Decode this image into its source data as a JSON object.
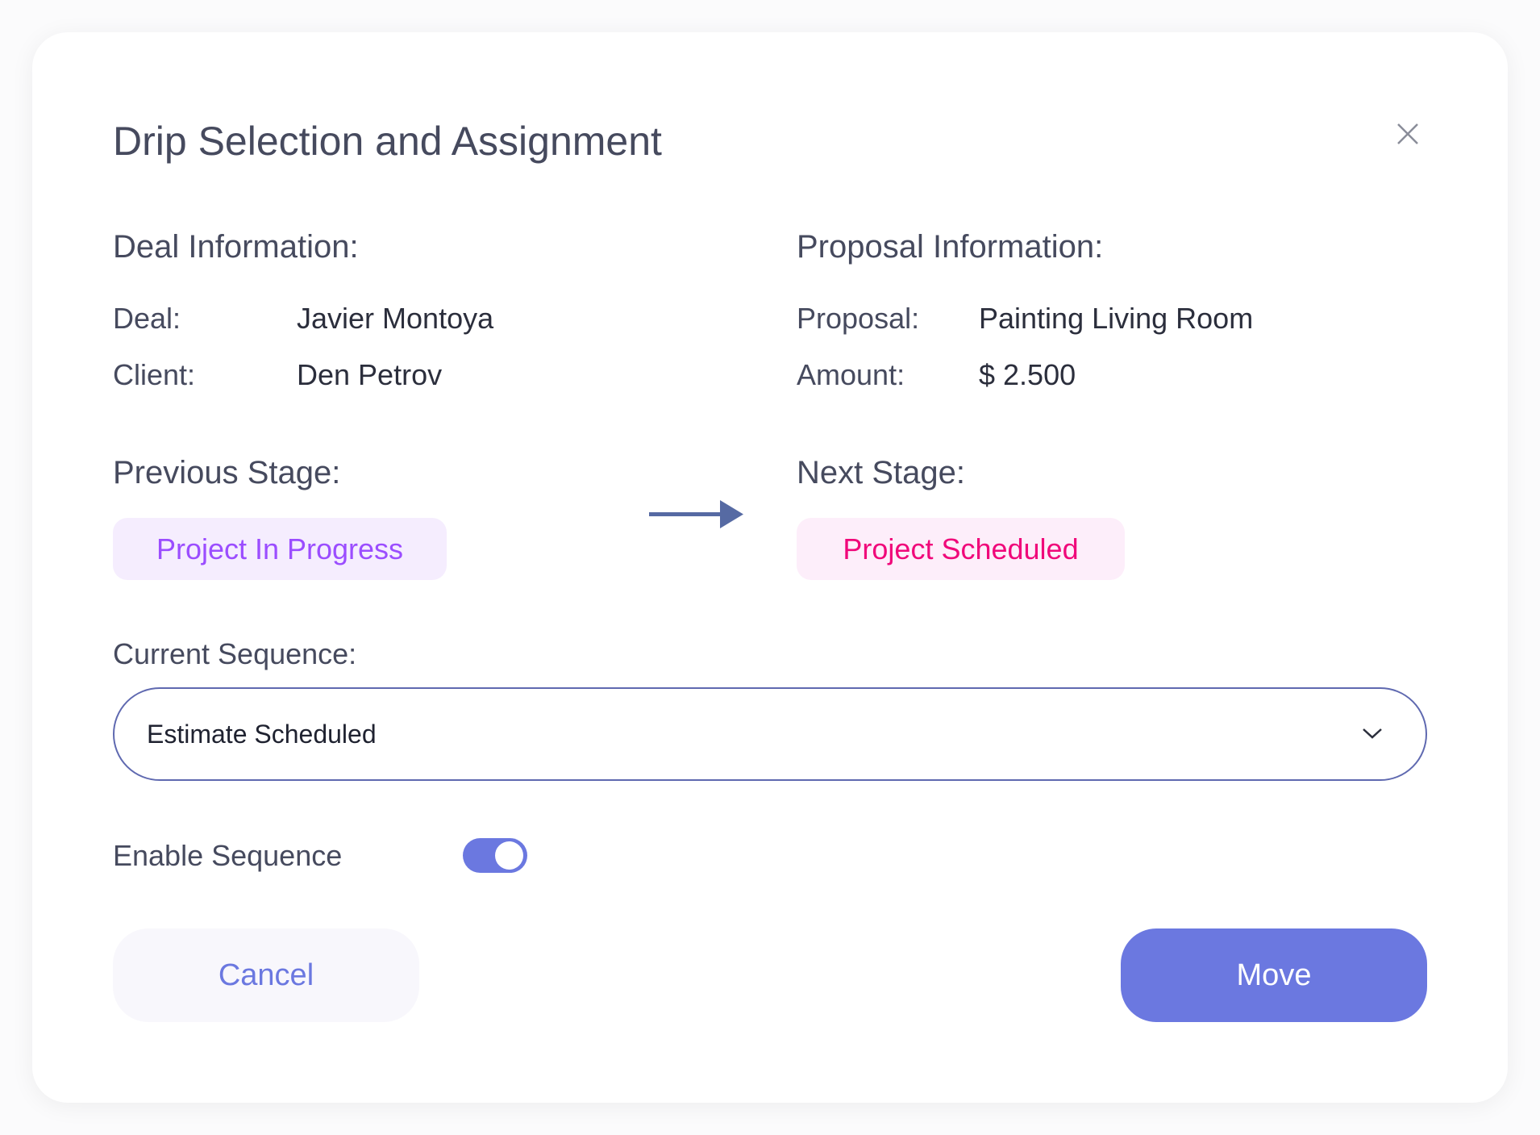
{
  "dialog": {
    "title": "Drip Selection and Assignment",
    "close_icon": "close-icon"
  },
  "deal": {
    "heading": "Deal Information:",
    "deal_label": "Deal:",
    "deal_value": "Javier Montoya",
    "client_label": "Client:",
    "client_value": "Den Petrov"
  },
  "proposal": {
    "heading": "Proposal Information:",
    "proposal_label": "Proposal:",
    "proposal_value": "Painting Living Room",
    "amount_label": "Amount:",
    "amount_value": "$ 2.500"
  },
  "stages": {
    "previous_heading": "Previous Stage:",
    "previous_value": "Project In Progress",
    "previous_color": "#9b4dff",
    "previous_bg": "#f5edfe",
    "next_heading": "Next Stage:",
    "next_value": "Project Scheduled",
    "next_color": "#f0087a",
    "next_bg": "#fdeefa",
    "arrow_icon": "arrow-right-icon"
  },
  "sequence": {
    "label": "Current Sequence:",
    "selected": "Estimate Scheduled",
    "enable_label": "Enable Sequence",
    "enabled": true
  },
  "actions": {
    "cancel": "Cancel",
    "move": "Move"
  },
  "colors": {
    "accent": "#6b78e0",
    "text": "#464a5e"
  }
}
